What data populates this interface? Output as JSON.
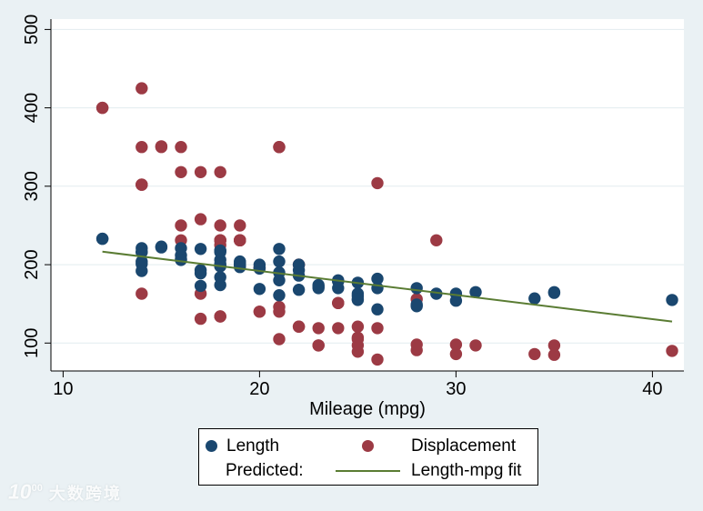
{
  "chart_data": {
    "type": "scatter",
    "title": "",
    "xlabel": "Mileage (mpg)",
    "ylabel": "",
    "x_ticks": [
      10,
      20,
      30,
      40
    ],
    "y_ticks": [
      100,
      200,
      300,
      400,
      500
    ],
    "x_range": [
      9.38,
      41.6
    ],
    "y_range": [
      64.4,
      513.2
    ],
    "grid": true,
    "legend_position": "bottom",
    "marker_radius": 6.7,
    "colors": {
      "length": "#1a476f",
      "displacement": "#9c3a44",
      "fit": "#5a7c33",
      "background": "#eaf1f4",
      "plot_background": "#ffffff",
      "gridline": "#e2ecef"
    },
    "series": [
      {
        "name": "Length",
        "color": "#1a476f",
        "marker": "circle",
        "points": [
          [
            12,
            233
          ],
          [
            12,
            233
          ],
          [
            14,
            221
          ],
          [
            14,
            204
          ],
          [
            14,
            201
          ],
          [
            14,
            216
          ],
          [
            14,
            216
          ],
          [
            14,
            192
          ],
          [
            15,
            222
          ],
          [
            15,
            223
          ],
          [
            16,
            207
          ],
          [
            16,
            212
          ],
          [
            16,
            206
          ],
          [
            16,
            221
          ],
          [
            17,
            173
          ],
          [
            17,
            220
          ],
          [
            17,
            189
          ],
          [
            17,
            193
          ],
          [
            18,
            218
          ],
          [
            18,
            206
          ],
          [
            18,
            198
          ],
          [
            18,
            201
          ],
          [
            18,
            216
          ],
          [
            18,
            198
          ],
          [
            18,
            218
          ],
          [
            18,
            174
          ],
          [
            18,
            184
          ],
          [
            19,
            200
          ],
          [
            19,
            197
          ],
          [
            19,
            200
          ],
          [
            19,
            200
          ],
          [
            19,
            200
          ],
          [
            19,
            204
          ],
          [
            19,
            200
          ],
          [
            19,
            203
          ],
          [
            20,
            196
          ],
          [
            20,
            200
          ],
          [
            20,
            169
          ],
          [
            20,
            195
          ],
          [
            21,
            204
          ],
          [
            21,
            180
          ],
          [
            21,
            220
          ],
          [
            21,
            190
          ],
          [
            21,
            161
          ],
          [
            22,
            186
          ],
          [
            22,
            168
          ],
          [
            22,
            193
          ],
          [
            22,
            200
          ],
          [
            23,
            174
          ],
          [
            23,
            170
          ],
          [
            23,
            172
          ],
          [
            24,
            179
          ],
          [
            24,
            180
          ],
          [
            24,
            179
          ],
          [
            24,
            170
          ],
          [
            25,
            160
          ],
          [
            25,
            177
          ],
          [
            25,
            163
          ],
          [
            25,
            155
          ],
          [
            25,
            156
          ],
          [
            26,
            170
          ],
          [
            26,
            182
          ],
          [
            26,
            143
          ],
          [
            28,
            147
          ],
          [
            28,
            170
          ],
          [
            28,
            149
          ],
          [
            29,
            163
          ],
          [
            30,
            163
          ],
          [
            30,
            154
          ],
          [
            31,
            165
          ],
          [
            34,
            157
          ],
          [
            35,
            165
          ],
          [
            35,
            164
          ],
          [
            41,
            155
          ]
        ]
      },
      {
        "name": "Displacement",
        "color": "#9c3a44",
        "marker": "circle",
        "points": [
          [
            12,
            400
          ],
          [
            12,
            400
          ],
          [
            14,
            425
          ],
          [
            14,
            350
          ],
          [
            14,
            302
          ],
          [
            14,
            302
          ],
          [
            14,
            302
          ],
          [
            14,
            163
          ],
          [
            15,
            350
          ],
          [
            15,
            351
          ],
          [
            16,
            231
          ],
          [
            16,
            250
          ],
          [
            16,
            318
          ],
          [
            16,
            350
          ],
          [
            17,
            258
          ],
          [
            17,
            318
          ],
          [
            17,
            131
          ],
          [
            17,
            163
          ],
          [
            18,
            231
          ],
          [
            18,
            318
          ],
          [
            18,
            250
          ],
          [
            18,
            225
          ],
          [
            18,
            231
          ],
          [
            18,
            231
          ],
          [
            18,
            231
          ],
          [
            18,
            134
          ],
          [
            18,
            134
          ],
          [
            19,
            231
          ],
          [
            19,
            250
          ],
          [
            19,
            231
          ],
          [
            19,
            231
          ],
          [
            19,
            231
          ],
          [
            19,
            231
          ],
          [
            19,
            231
          ],
          [
            19,
            231
          ],
          [
            20,
            196
          ],
          [
            20,
            196
          ],
          [
            20,
            140
          ],
          [
            20,
            140
          ],
          [
            21,
            350
          ],
          [
            21,
            140
          ],
          [
            21,
            350
          ],
          [
            21,
            146
          ],
          [
            21,
            105
          ],
          [
            22,
            121
          ],
          [
            22,
            121
          ],
          [
            22,
            200
          ],
          [
            22,
            200
          ],
          [
            23,
            97
          ],
          [
            23,
            119
          ],
          [
            23,
            97
          ],
          [
            24,
            151
          ],
          [
            24,
            151
          ],
          [
            24,
            151
          ],
          [
            24,
            119
          ],
          [
            25,
            105
          ],
          [
            25,
            121
          ],
          [
            25,
            107
          ],
          [
            25,
            89
          ],
          [
            25,
            97
          ],
          [
            26,
            304
          ],
          [
            26,
            119
          ],
          [
            26,
            79
          ],
          [
            28,
            98
          ],
          [
            28,
            156
          ],
          [
            28,
            91
          ],
          [
            29,
            231
          ],
          [
            30,
            98
          ],
          [
            30,
            86
          ],
          [
            31,
            97
          ],
          [
            34,
            86
          ],
          [
            35,
            85
          ],
          [
            35,
            97
          ],
          [
            41,
            90
          ]
        ]
      }
    ],
    "fit_line": {
      "row_label": "Predicted:",
      "label": "Length-mpg fit",
      "color": "#5a7c33",
      "x": [
        12,
        41
      ],
      "y": [
        216.6,
        127.5
      ]
    }
  },
  "watermark": {
    "logo_base": "10",
    "logo_sup": "00",
    "brand": "大数跨境"
  }
}
